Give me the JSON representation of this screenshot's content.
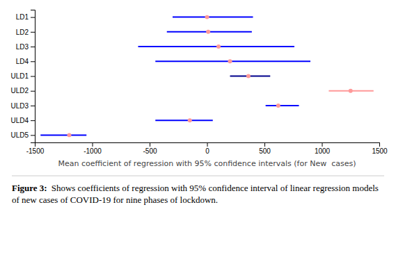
{
  "chart_data": {
    "type": "forest",
    "categories": [
      "LD1",
      "LD2",
      "LD3",
      "LD4",
      "ULD1",
      "ULD2",
      "ULD3",
      "ULD4",
      "ULD5"
    ],
    "series": [
      {
        "values": [
          0,
          10,
          100,
          200,
          360,
          1250,
          620,
          -150,
          -1200
        ],
        "ci_low": [
          -300,
          -350,
          -600,
          -450,
          200,
          1060,
          510,
          -450,
          -1450
        ],
        "ci_high": [
          400,
          390,
          760,
          900,
          550,
          1450,
          800,
          50,
          -1050
        ],
        "color": "#FF9999",
        "marker": "circle",
        "colors": [
          "blue",
          "blue",
          "blue",
          "blue",
          "#00008B",
          "#FF9999",
          "blue",
          "blue",
          "blue"
        ]
      }
    ],
    "x_label": "Mean coefficient of regression with 95% confidence intervals (for New  cases)",
    "xlim": [
      -1500,
      1500
    ],
    "xticks": [
      -1500,
      -1000,
      -500,
      0,
      500,
      1000,
      1500
    ],
    "annotations": [
      "Figure 3:",
      "Shows coefficients of regression with 95% confidence interval of linear regression models of new cases of COVID-19 for nine phases of lockdown."
    ],
    "grid": false
  }
}
